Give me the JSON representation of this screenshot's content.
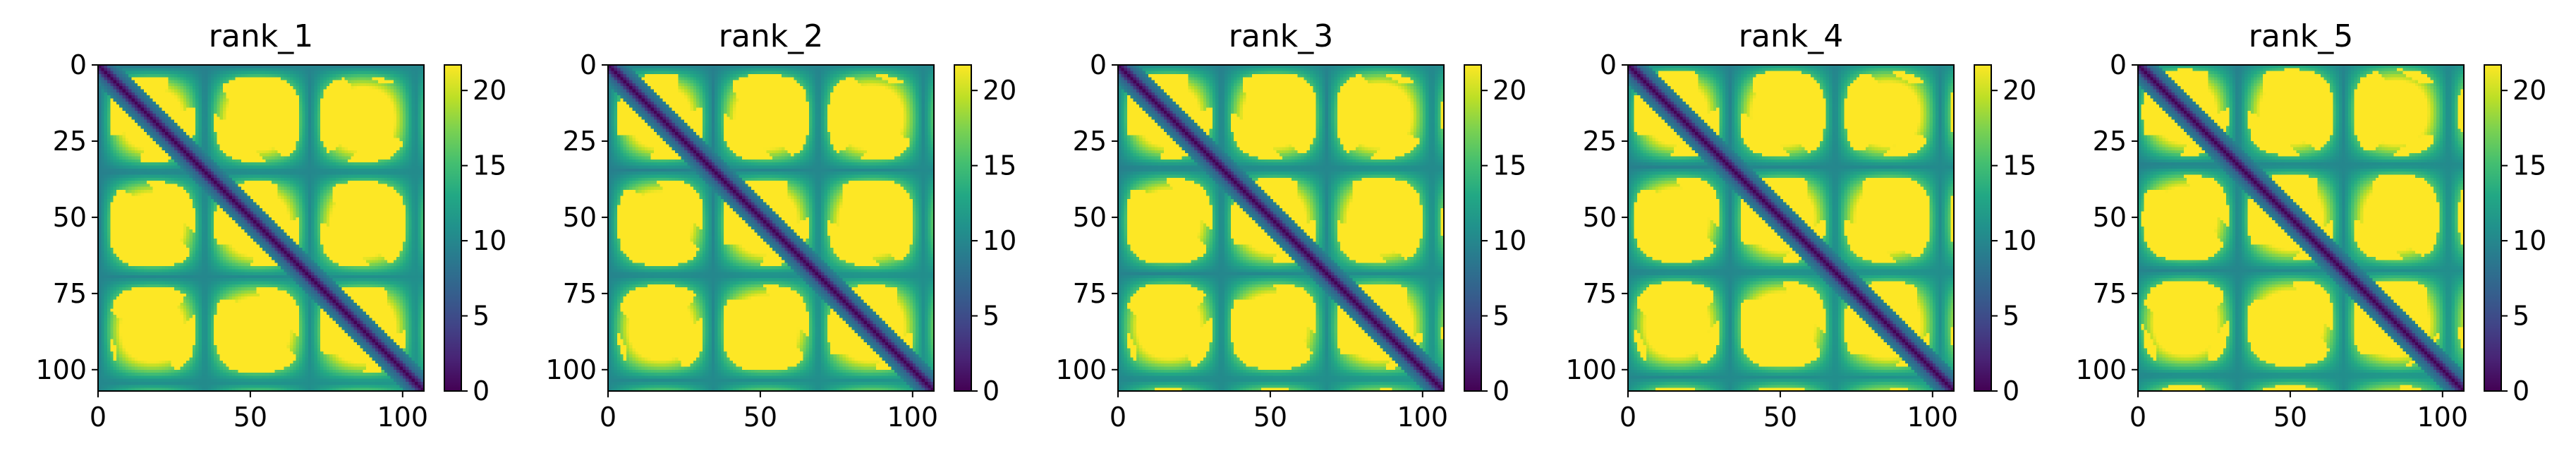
{
  "chart_data": [
    {
      "type": "heatmap",
      "title": "rank_1",
      "xticks": [
        0,
        50,
        100
      ],
      "yticks": [
        0,
        25,
        50,
        75,
        100
      ],
      "xlim": [
        0,
        107
      ],
      "ylim": [
        107,
        0
      ],
      "n": 107,
      "colorbar": {
        "ticks": [
          0,
          5,
          10,
          15,
          20
        ],
        "range": [
          0,
          21.7
        ],
        "colormap": "viridis"
      },
      "cmap_colors": [
        "#440154",
        "#482475",
        "#414487",
        "#355f8d",
        "#2a788e",
        "#21918c",
        "#22a884",
        "#44bf70",
        "#7ad151",
        "#bddf26",
        "#fde725"
      ]
    },
    {
      "type": "heatmap",
      "title": "rank_2",
      "xticks": [
        0,
        50,
        100
      ],
      "yticks": [
        0,
        25,
        50,
        75,
        100
      ],
      "xlim": [
        0,
        107
      ],
      "ylim": [
        107,
        0
      ],
      "n": 107,
      "colorbar": {
        "ticks": [
          0,
          5,
          10,
          15,
          20
        ],
        "range": [
          0,
          21.7
        ],
        "colormap": "viridis"
      },
      "cmap_colors": [
        "#440154",
        "#482475",
        "#414487",
        "#355f8d",
        "#2a788e",
        "#21918c",
        "#22a884",
        "#44bf70",
        "#7ad151",
        "#bddf26",
        "#fde725"
      ]
    },
    {
      "type": "heatmap",
      "title": "rank_3",
      "xticks": [
        0,
        50,
        100
      ],
      "yticks": [
        0,
        25,
        50,
        75,
        100
      ],
      "xlim": [
        0,
        107
      ],
      "ylim": [
        107,
        0
      ],
      "n": 107,
      "colorbar": {
        "ticks": [
          0,
          5,
          10,
          15,
          20
        ],
        "range": [
          0,
          21.7
        ],
        "colormap": "viridis"
      },
      "cmap_colors": [
        "#440154",
        "#482475",
        "#414487",
        "#355f8d",
        "#2a788e",
        "#21918c",
        "#22a884",
        "#44bf70",
        "#7ad151",
        "#bddf26",
        "#fde725"
      ]
    },
    {
      "type": "heatmap",
      "title": "rank_4",
      "xticks": [
        0,
        50,
        100
      ],
      "yticks": [
        0,
        25,
        50,
        75,
        100
      ],
      "xlim": [
        0,
        107
      ],
      "ylim": [
        107,
        0
      ],
      "n": 107,
      "colorbar": {
        "ticks": [
          0,
          5,
          10,
          15,
          20
        ],
        "range": [
          0,
          21.7
        ],
        "colormap": "viridis"
      },
      "cmap_colors": [
        "#440154",
        "#482475",
        "#414487",
        "#355f8d",
        "#2a788e",
        "#21918c",
        "#22a884",
        "#44bf70",
        "#7ad151",
        "#bddf26",
        "#fde725"
      ]
    },
    {
      "type": "heatmap",
      "title": "rank_5",
      "xticks": [
        0,
        50,
        100
      ],
      "yticks": [
        0,
        25,
        50,
        75,
        100
      ],
      "xlim": [
        0,
        107
      ],
      "ylim": [
        107,
        0
      ],
      "n": 107,
      "colorbar": {
        "ticks": [
          0,
          5,
          10,
          15,
          20
        ],
        "range": [
          0,
          21.7
        ],
        "colormap": "viridis"
      },
      "cmap_colors": [
        "#440154",
        "#482475",
        "#414487",
        "#355f8d",
        "#2a788e",
        "#21918c",
        "#22a884",
        "#44bf70",
        "#7ad151",
        "#bddf26",
        "#fde725"
      ]
    }
  ]
}
